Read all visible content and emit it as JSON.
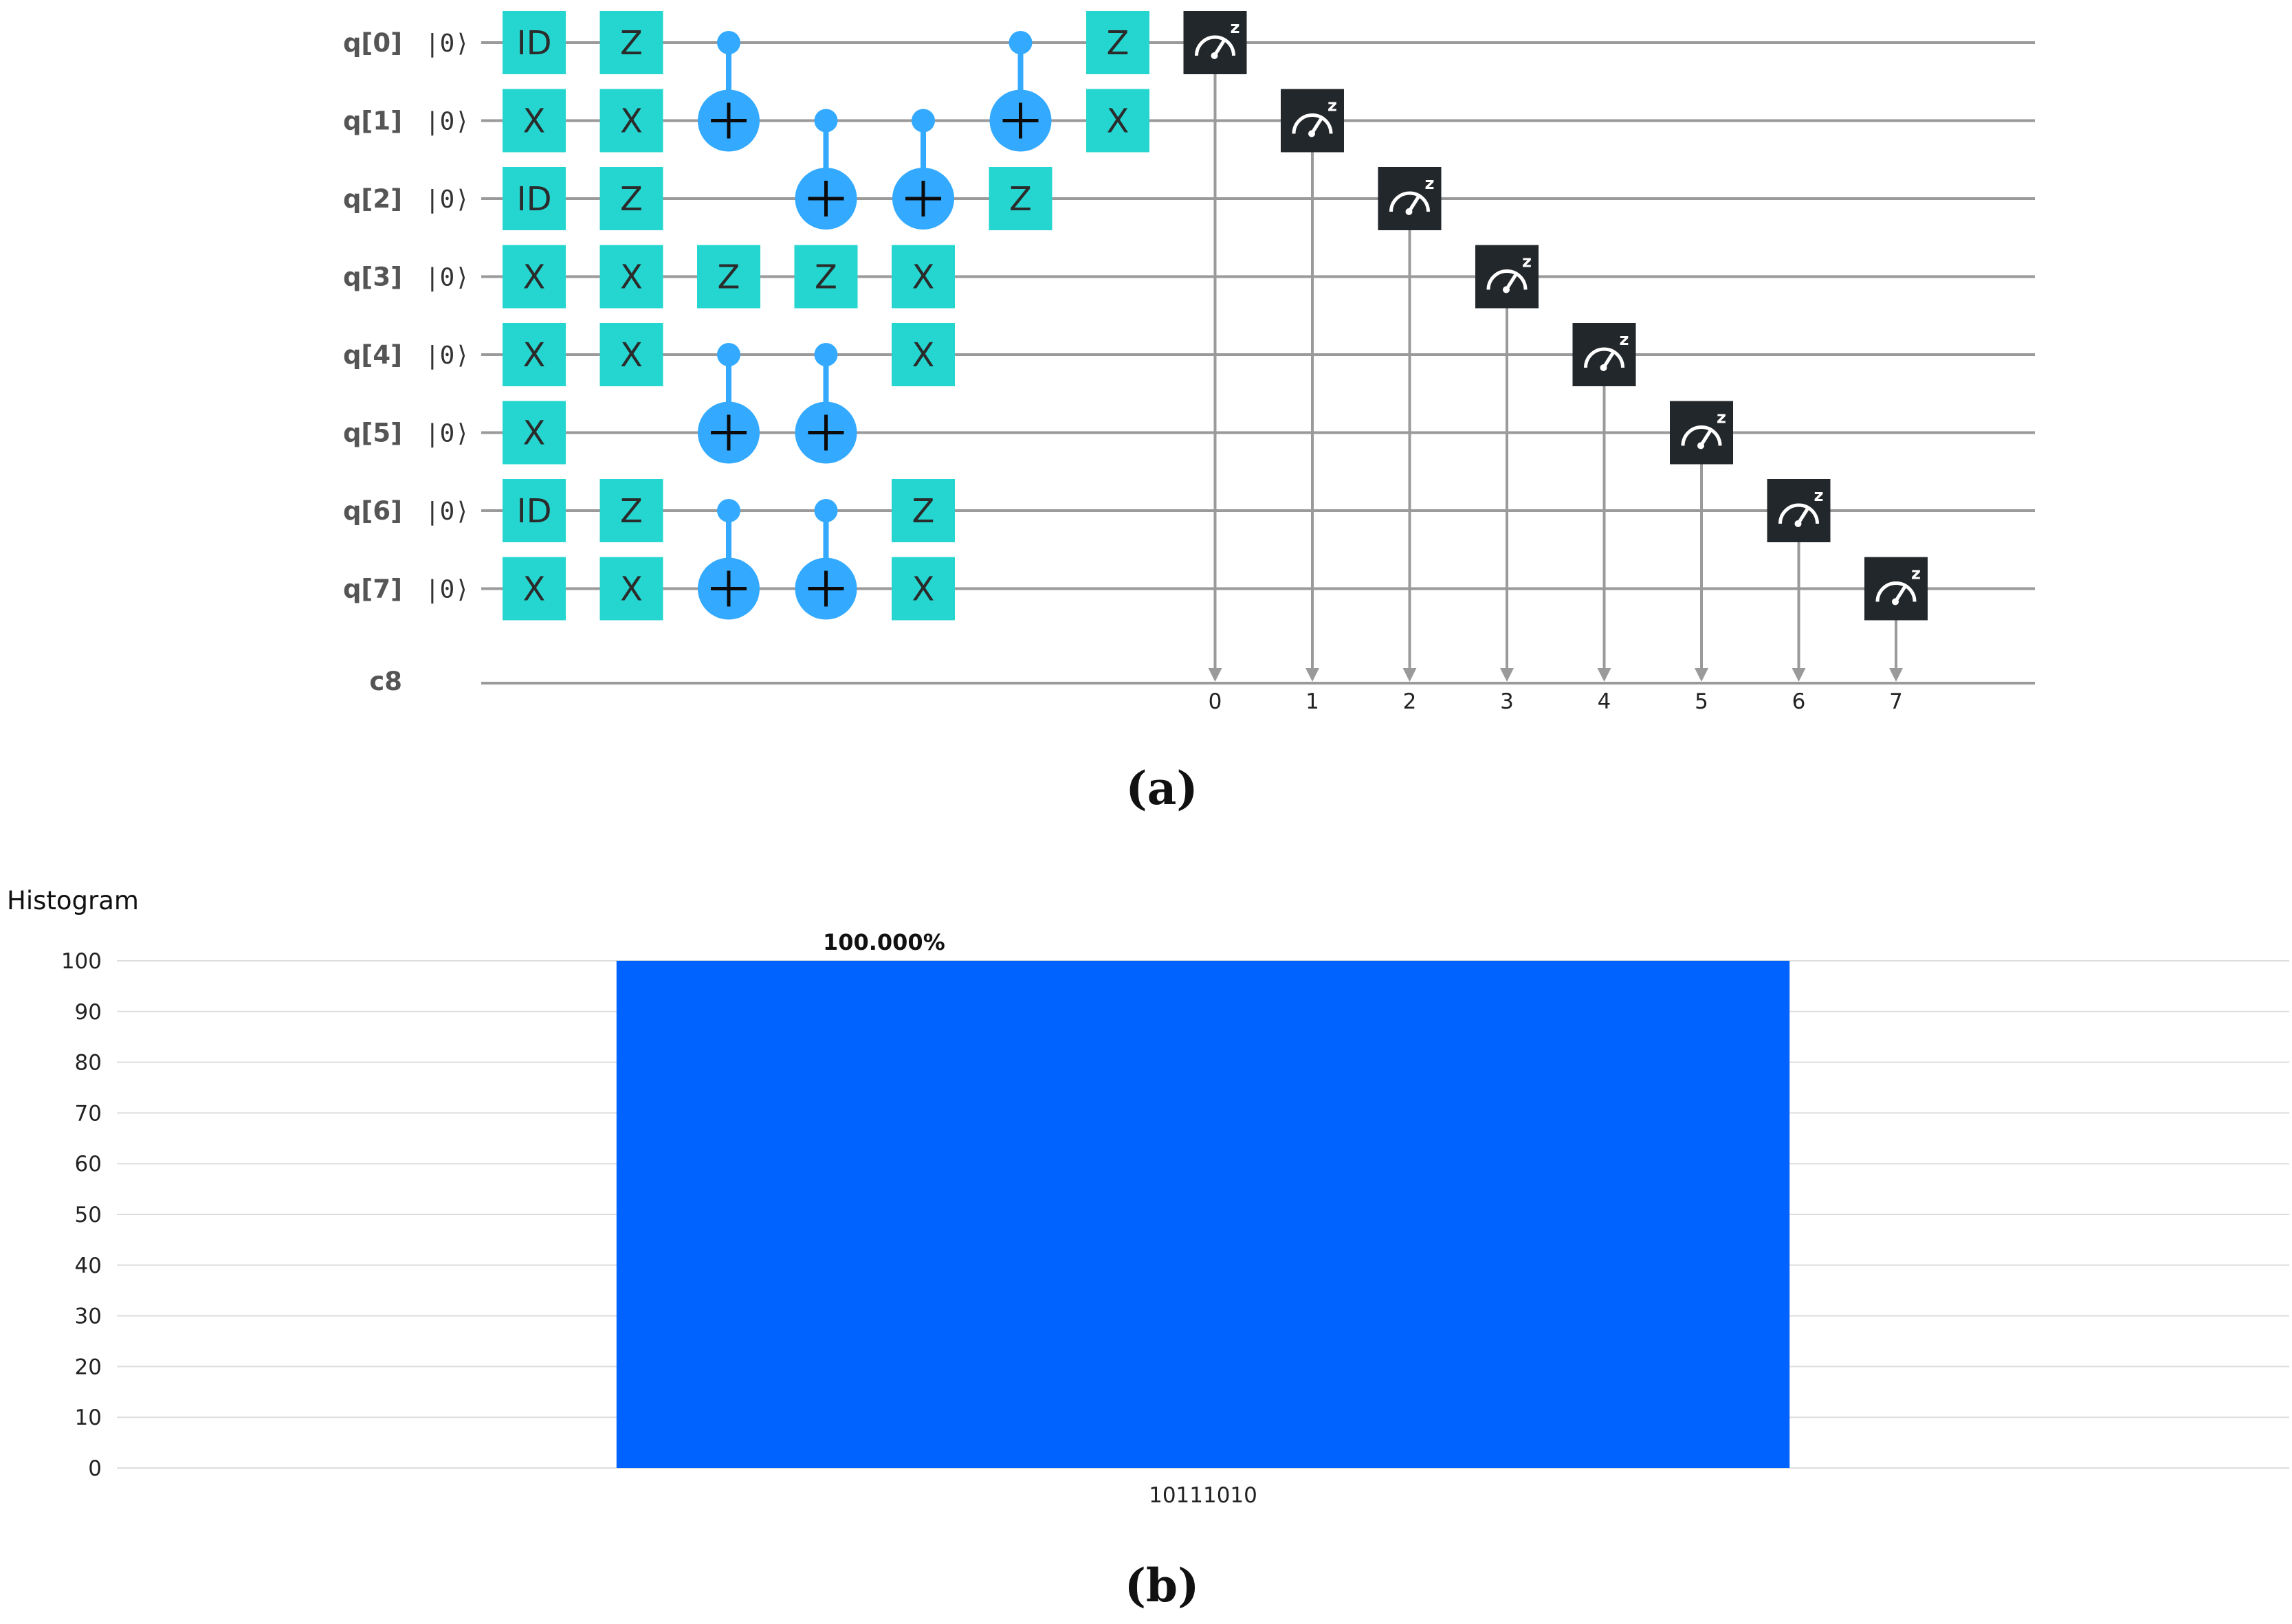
{
  "panel_a": {
    "label": "(a)",
    "qubits": [
      {
        "label": "q[0]",
        "init": "|0⟩"
      },
      {
        "label": "q[1]",
        "init": "|0⟩"
      },
      {
        "label": "q[2]",
        "init": "|0⟩"
      },
      {
        "label": "q[3]",
        "init": "|0⟩"
      },
      {
        "label": "q[4]",
        "init": "|0⟩"
      },
      {
        "label": "q[5]",
        "init": "|0⟩"
      },
      {
        "label": "q[6]",
        "init": "|0⟩"
      },
      {
        "label": "q[7]",
        "init": "|0⟩"
      }
    ],
    "classical_register": "c8",
    "classical_bit_labels": [
      "0",
      "1",
      "2",
      "3",
      "4",
      "5",
      "6",
      "7"
    ],
    "gates": [
      {
        "type": "single",
        "name": "ID",
        "qubit": 0,
        "col": 0
      },
      {
        "type": "single",
        "name": "X",
        "qubit": 1,
        "col": 0
      },
      {
        "type": "single",
        "name": "ID",
        "qubit": 2,
        "col": 0
      },
      {
        "type": "single",
        "name": "X",
        "qubit": 3,
        "col": 0
      },
      {
        "type": "single",
        "name": "X",
        "qubit": 4,
        "col": 0
      },
      {
        "type": "single",
        "name": "X",
        "qubit": 5,
        "col": 0
      },
      {
        "type": "single",
        "name": "ID",
        "qubit": 6,
        "col": 0
      },
      {
        "type": "single",
        "name": "X",
        "qubit": 7,
        "col": 0
      },
      {
        "type": "single",
        "name": "Z",
        "qubit": 0,
        "col": 1
      },
      {
        "type": "single",
        "name": "X",
        "qubit": 1,
        "col": 1
      },
      {
        "type": "single",
        "name": "Z",
        "qubit": 2,
        "col": 1
      },
      {
        "type": "single",
        "name": "X",
        "qubit": 3,
        "col": 1
      },
      {
        "type": "single",
        "name": "X",
        "qubit": 4,
        "col": 1
      },
      {
        "type": "single",
        "name": "Z",
        "qubit": 6,
        "col": 1
      },
      {
        "type": "single",
        "name": "X",
        "qubit": 7,
        "col": 1
      },
      {
        "type": "cnot",
        "control": 0,
        "target": 1,
        "col": 2
      },
      {
        "type": "single",
        "name": "Z",
        "qubit": 3,
        "col": 2
      },
      {
        "type": "cnot",
        "control": 4,
        "target": 5,
        "col": 2
      },
      {
        "type": "cnot",
        "control": 6,
        "target": 7,
        "col": 2
      },
      {
        "type": "cnot",
        "control": 1,
        "target": 2,
        "col": 3
      },
      {
        "type": "single",
        "name": "Z",
        "qubit": 3,
        "col": 3
      },
      {
        "type": "cnot",
        "control": 4,
        "target": 5,
        "col": 3
      },
      {
        "type": "cnot",
        "control": 6,
        "target": 7,
        "col": 3
      },
      {
        "type": "cnot",
        "control": 1,
        "target": 2,
        "col": 4
      },
      {
        "type": "single",
        "name": "X",
        "qubit": 3,
        "col": 4
      },
      {
        "type": "single",
        "name": "X",
        "qubit": 4,
        "col": 4
      },
      {
        "type": "single",
        "name": "Z",
        "qubit": 6,
        "col": 4
      },
      {
        "type": "single",
        "name": "X",
        "qubit": 7,
        "col": 4
      },
      {
        "type": "cnot",
        "control": 0,
        "target": 1,
        "col": 5
      },
      {
        "type": "single",
        "name": "Z",
        "qubit": 2,
        "col": 5
      },
      {
        "type": "single",
        "name": "Z",
        "qubit": 0,
        "col": 6
      },
      {
        "type": "single",
        "name": "X",
        "qubit": 1,
        "col": 6
      },
      {
        "type": "measure",
        "qubit": 0,
        "cbit": 0,
        "col": 7
      },
      {
        "type": "measure",
        "qubit": 1,
        "cbit": 1,
        "col": 8
      },
      {
        "type": "measure",
        "qubit": 2,
        "cbit": 2,
        "col": 9
      },
      {
        "type": "measure",
        "qubit": 3,
        "cbit": 3,
        "col": 10
      },
      {
        "type": "measure",
        "qubit": 4,
        "cbit": 4,
        "col": 11
      },
      {
        "type": "measure",
        "qubit": 5,
        "cbit": 5,
        "col": 12
      },
      {
        "type": "measure",
        "qubit": 6,
        "cbit": 6,
        "col": 13
      },
      {
        "type": "measure",
        "qubit": 7,
        "cbit": 7,
        "col": 14
      }
    ],
    "measure_icon_glyph": "z",
    "colors": {
      "gate": "#25d6d0",
      "cnot": "#33aaff",
      "measure": "#22272b",
      "wire": "#9a9a9a"
    }
  },
  "panel_b": {
    "label": "(b)",
    "chart_data": {
      "type": "bar",
      "title": "Histogram",
      "categories": [
        "10111010"
      ],
      "values": [
        100
      ],
      "data_labels": [
        "100.000%"
      ],
      "yticks": [
        0,
        10,
        20,
        30,
        40,
        50,
        60,
        70,
        80,
        90,
        100
      ],
      "ylim": [
        0,
        100
      ],
      "xlabel": "",
      "ylabel": "",
      "grid": true,
      "bar_color": "#0062ff",
      "grid_color": "#dddddd"
    }
  }
}
